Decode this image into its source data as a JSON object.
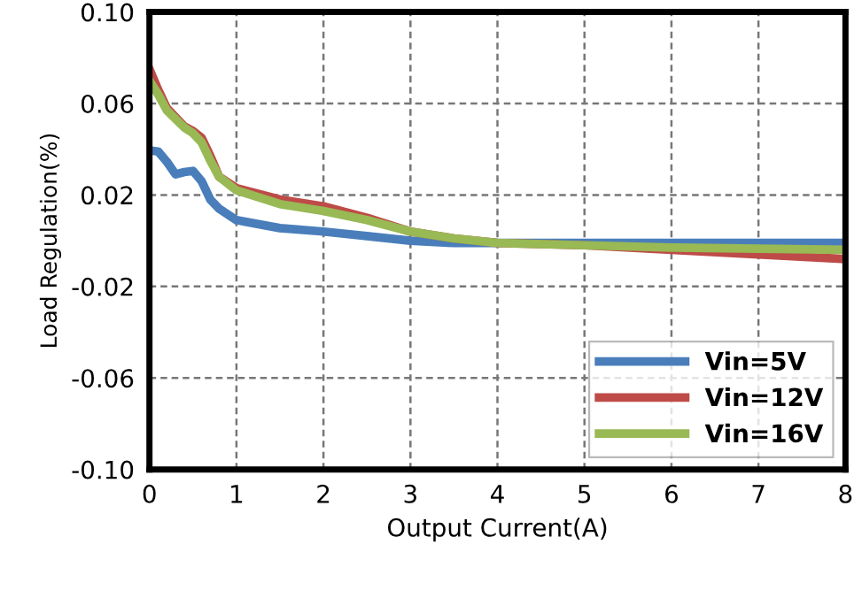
{
  "chart_data": {
    "type": "line",
    "xlabel": "Output Current(A)",
    "ylabel": "Load Regulation(%)",
    "xlim": [
      0,
      8
    ],
    "xticks": [
      0,
      1,
      2,
      3,
      4,
      5,
      6,
      7,
      8
    ],
    "ylim": [
      -0.1,
      0.1
    ],
    "yticks": [
      {
        "value": 0.1,
        "label": "0.10"
      },
      0.06,
      0.02,
      -0.02,
      -0.06,
      {
        "value": -0.1,
        "label": "-0.10"
      }
    ],
    "grid": true,
    "legend": "bottom right",
    "marker": "none",
    "line_style": "solid",
    "series": [
      {
        "name": "Vin=5V",
        "color": "#4a7ebb",
        "x": [
          0,
          0.1,
          0.2,
          0.3,
          0.4,
          0.5,
          0.6,
          0.7,
          0.8,
          1,
          1.5,
          2,
          2.5,
          3,
          3.5,
          4,
          5,
          6,
          7,
          8
        ],
        "values": [
          0.0395,
          0.039,
          0.0345,
          0.029,
          0.03,
          0.0305,
          0.026,
          0.018,
          0.014,
          0.009,
          0.0055,
          0.004,
          0.002,
          0.0,
          -0.001,
          -0.001,
          -0.001,
          -0.001,
          -0.001,
          -0.001
        ]
      },
      {
        "name": "Vin=12V",
        "color": "#be4b48",
        "x": [
          0,
          0.1,
          0.2,
          0.4,
          0.5,
          0.6,
          0.7,
          0.8,
          1,
          1.5,
          2,
          2.5,
          3,
          3.5,
          4,
          5,
          6,
          7,
          8
        ],
        "values": [
          0.075,
          0.066,
          0.058,
          0.05,
          0.048,
          0.045,
          0.037,
          0.028,
          0.023,
          0.018,
          0.015,
          0.01,
          0.004,
          0.001,
          -0.001,
          -0.002,
          -0.004,
          -0.006,
          -0.008
        ]
      },
      {
        "name": "Vin=16V",
        "color": "#98b954",
        "x": [
          0,
          0.1,
          0.2,
          0.4,
          0.5,
          0.6,
          0.7,
          0.8,
          1,
          1.5,
          2,
          2.5,
          3,
          3.5,
          4,
          5,
          6,
          7,
          8
        ],
        "values": [
          0.07,
          0.064,
          0.057,
          0.0495,
          0.047,
          0.043,
          0.035,
          0.028,
          0.022,
          0.016,
          0.013,
          0.009,
          0.004,
          0.001,
          -0.001,
          -0.002,
          -0.003,
          -0.0035,
          -0.004
        ]
      }
    ]
  }
}
